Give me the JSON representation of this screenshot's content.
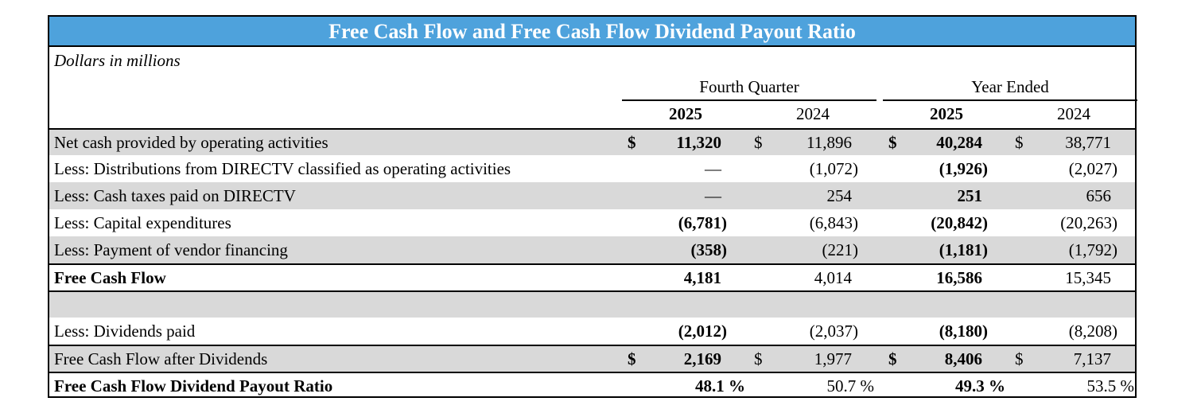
{
  "title": "Free Cash Flow and Free Cash Flow Dividend Payout Ratio",
  "subtitle": "Dollars in millions",
  "groups": {
    "q": "Fourth Quarter",
    "y": "Year Ended"
  },
  "years": {
    "q2025": "2025",
    "q2024": "2024",
    "y2025": "2025",
    "y2024": "2024"
  },
  "currency": "$",
  "rows": [
    {
      "label": "Net cash provided by operating activities",
      "q2025": "11,320",
      "q2024": "11,896",
      "y2025": "40,284",
      "y2024": "38,771"
    },
    {
      "label": "Less: Distributions from DIRECTV classified as operating activities",
      "q2025": "—",
      "q2024": "(1,072)",
      "y2025": "(1,926)",
      "y2024": "(2,027)"
    },
    {
      "label": "Less: Cash taxes paid on DIRECTV",
      "q2025": "—",
      "q2024": "254",
      "y2025": "251",
      "y2024": "656"
    },
    {
      "label": "Less: Capital expenditures",
      "q2025": "(6,781)",
      "q2024": "(6,843)",
      "y2025": "(20,842)",
      "y2024": "(20,263)"
    },
    {
      "label": "Less: Payment of vendor financing",
      "q2025": "(358)",
      "q2024": "(221)",
      "y2025": "(1,181)",
      "y2024": "(1,792)"
    },
    {
      "label": "Free Cash Flow",
      "q2025": "4,181",
      "q2024": "4,014",
      "y2025": "16,586",
      "y2024": "15,345"
    },
    {
      "label": "",
      "q2025": "",
      "q2024": "",
      "y2025": "",
      "y2024": ""
    },
    {
      "label": "Less: Dividends paid",
      "q2025": "(2,012)",
      "q2024": "(2,037)",
      "y2025": "(8,180)",
      "y2024": "(8,208)"
    },
    {
      "label": "Free Cash Flow after Dividends",
      "q2025": "2,169",
      "q2024": "1,977",
      "y2025": "8,406",
      "y2024": "7,137"
    },
    {
      "label": "Free Cash Flow Dividend Payout Ratio",
      "q2025": "48.1 %",
      "q2024": "50.7 %",
      "y2025": "49.3 %",
      "y2024": "53.5 %"
    }
  ]
}
